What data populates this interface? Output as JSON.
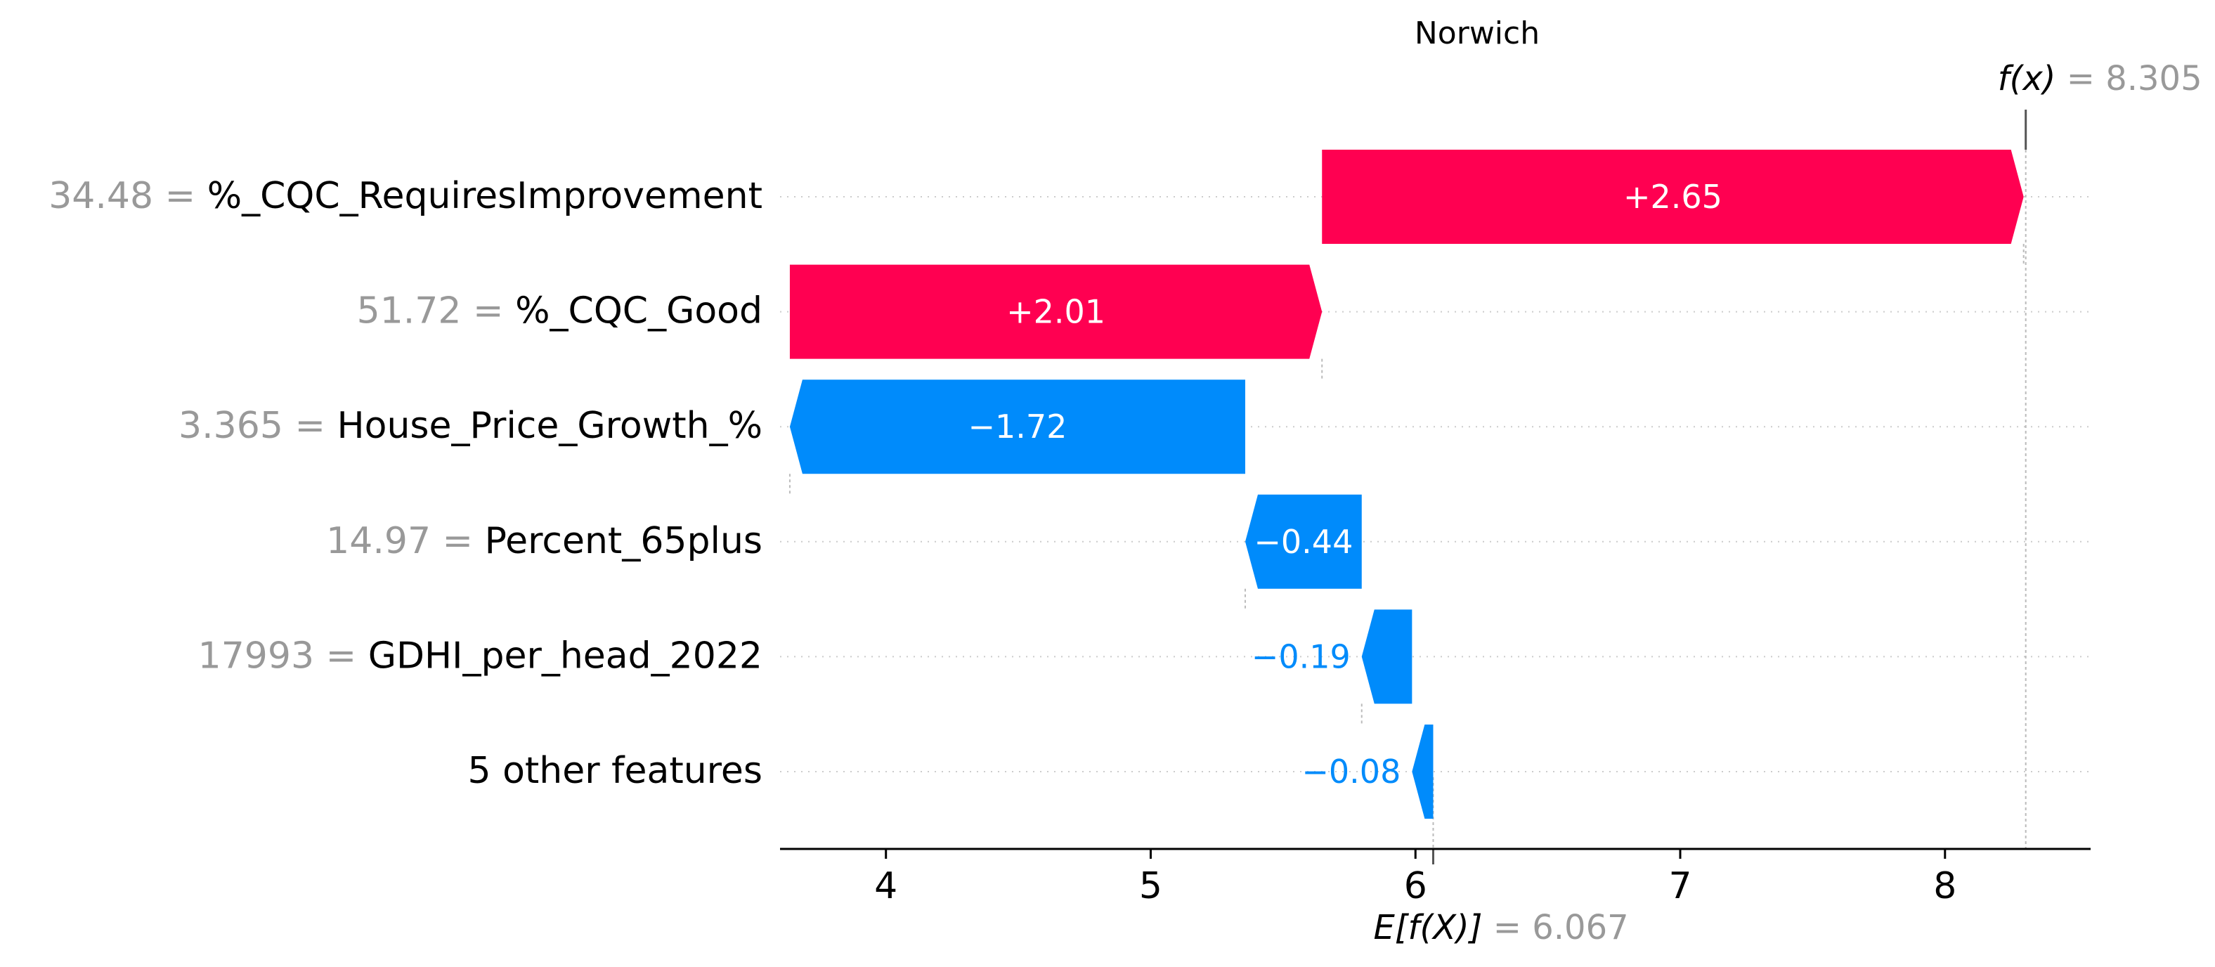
{
  "chart_data": {
    "type": "waterfall",
    "title": "Norwich",
    "xlim": [
      3.6,
      8.55
    ],
    "xticks": [
      "4",
      "5",
      "6",
      "7",
      "8"
    ],
    "base_value": 6.067,
    "base_label_main": "E[f(X)]",
    "base_label_value": "= 6.067",
    "output_value": 8.305,
    "output_label_main": "f(x)",
    "output_label_value": "= 8.305",
    "rows": [
      {
        "value_text": "34.48 =",
        "feature": "%_CQC_RequiresImprovement",
        "contribution": 2.65,
        "label": "+2.65"
      },
      {
        "value_text": "51.72 =",
        "feature": "%_CQC_Good",
        "contribution": 2.01,
        "label": "+2.01"
      },
      {
        "value_text": "3.365 =",
        "feature": "House_Price_Growth_%",
        "contribution": -1.72,
        "label": "−1.72"
      },
      {
        "value_text": "14.97 =",
        "feature": "Percent_65plus",
        "contribution": -0.44,
        "label": "−0.44"
      },
      {
        "value_text": "17993 =",
        "feature": "GDHI_per_head_2022",
        "contribution": -0.19,
        "label": "−0.19"
      },
      {
        "value_text": "",
        "feature": "5 other features",
        "contribution": -0.08,
        "label": "−0.08"
      }
    ],
    "colors": {
      "positive": "#ff0051",
      "negative": "#008bfb",
      "muted": "#999999",
      "text": "#000000"
    }
  }
}
